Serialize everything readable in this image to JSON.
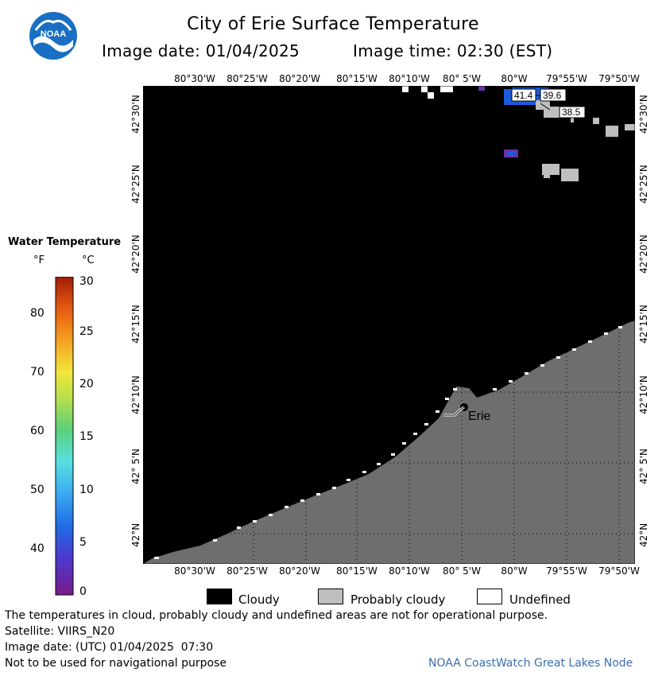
{
  "title": "City of Erie Surface Temperature",
  "image_date_label": "Image date: 01/04/2025",
  "image_time_label": "Image time: 02:30 (EST)",
  "logo_text": "NOAA",
  "longitude_ticks": [
    "80°30'W",
    "80°25'W",
    "80°20'W",
    "80°15'W",
    "80°10'W",
    "80° 5'W",
    "80°W",
    "79°55'W",
    "79°50'W"
  ],
  "latitude_ticks": [
    "42°30'N",
    "42°25'N",
    "42°20'N",
    "42°15'N",
    "42°10'N",
    "42° 5'N",
    "42°N"
  ],
  "map_labels": {
    "city": "Erie",
    "temp_1": "41.4",
    "temp_2": "39.6",
    "temp_3": "38.5"
  },
  "legend": {
    "title": "Water Temperature",
    "unit_f": "°F",
    "unit_c": "°C",
    "f_ticks": [
      "80",
      "70",
      "60",
      "50",
      "40"
    ],
    "c_ticks": [
      "30",
      "25",
      "20",
      "15",
      "10",
      "5",
      "0"
    ]
  },
  "key": {
    "cloudy": "Cloudy",
    "probably_cloudy": "Probably cloudy",
    "undefined": "Undefined"
  },
  "footer": {
    "disclaimer": "The temperatures in cloud, probably cloudy and undefined areas are not for operational purpose.",
    "satellite": "Satellite: VIIRS_N20",
    "utc_date": "Image date: (UTC) 01/04/2025  07:30",
    "nav_warning": "Not to be used for navigational purpose",
    "node": "NOAA CoastWatch Great Lakes Node"
  },
  "colors": {
    "cloudy": "#000000",
    "land": "#6e6e6e",
    "probably_cloudy": "#bfbfbf",
    "undefined": "#ffffff",
    "water_warm_patch": "#1e5adc",
    "node_text": "#3a6fb0"
  }
}
